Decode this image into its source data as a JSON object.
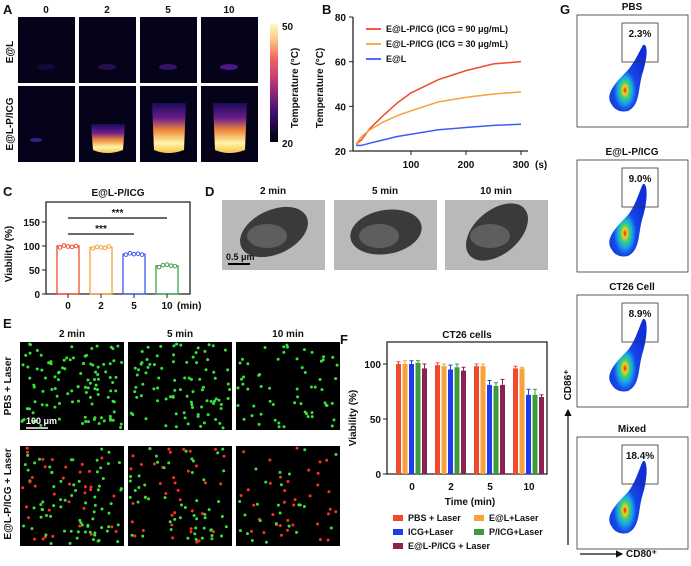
{
  "panels": {
    "A": {
      "label": "A",
      "columns": [
        "0",
        "2",
        "5",
        "10"
      ],
      "rows": [
        "E@L",
        "E@L-P/ICG"
      ],
      "colorbar": {
        "max": "50",
        "min": "20",
        "title": "Temperature (°C)"
      }
    },
    "D": {
      "label": "D",
      "columns": [
        "2 min",
        "5 min",
        "10 min"
      ],
      "scale_bar": "0.5 μm"
    },
    "E": {
      "label": "E",
      "columns": [
        "2 min",
        "5 min",
        "10 min"
      ],
      "rows": [
        "PBS + Laser",
        "E@L-P/ICG + Laser"
      ],
      "scale_bar": "100 μm"
    },
    "G": {
      "label": "G",
      "plots": [
        {
          "title": "PBS",
          "gate": "2.3%"
        },
        {
          "title": "E@L-P/ICG",
          "gate": "9.0%"
        },
        {
          "title": "CT26 Cell",
          "gate": "8.9%"
        },
        {
          "title": "Mixed",
          "gate": "18.4%"
        }
      ],
      "xlabel": "CD80⁺",
      "ylabel": "CD86⁺"
    }
  },
  "chart_data": [
    {
      "panel": "B",
      "label": "B",
      "type": "line",
      "xlabel": "(s)",
      "ylabel": "Temperature (°C)",
      "xlim": [
        0,
        300
      ],
      "ylim": [
        20,
        80
      ],
      "xticks": [
        "100",
        "200",
        "300"
      ],
      "yticks": [
        "20",
        "40",
        "60",
        "80"
      ],
      "legend": "top-left",
      "x": [
        0,
        10,
        25,
        50,
        75,
        100,
        150,
        200,
        250,
        300
      ],
      "series": [
        {
          "name": "E@L-P/ICG (ICG = 90 μg/mL)",
          "color": "#f04a2e",
          "values": [
            23,
            25,
            30,
            36,
            41.5,
            46,
            52,
            56,
            59,
            60
          ]
        },
        {
          "name": "E@L-P/ICG (ICG = 30 μg/mL)",
          "color": "#f9a13a",
          "values": [
            23,
            26.5,
            29.5,
            33,
            35.8,
            38,
            42,
            44,
            45.5,
            46.5
          ]
        },
        {
          "name": "E@L",
          "color": "#3a5cf5",
          "values": [
            22.5,
            22.5,
            23.5,
            25,
            26.5,
            27.5,
            29.5,
            30.5,
            31.5,
            32
          ]
        }
      ]
    },
    {
      "panel": "C",
      "label": "C",
      "type": "bar",
      "title": "E@L-P/ICG",
      "ylabel": "Viability (%)",
      "xlabel": "(min)",
      "ylim": [
        0,
        190
      ],
      "yticks": [
        "0",
        "50",
        "100",
        "150"
      ],
      "categories": [
        "0",
        "2",
        "5",
        "10"
      ],
      "colors": [
        "#f04a2e",
        "#f9a13a",
        "#3a5cf5",
        "#3fa34d"
      ],
      "values": [
        100,
        97,
        83,
        59
      ],
      "points": [
        [
          97,
          101,
          99,
          98,
          100
        ],
        [
          95,
          98,
          97,
          96,
          99
        ],
        [
          82,
          85,
          83,
          84,
          82
        ],
        [
          56,
          60,
          61,
          59,
          58
        ]
      ],
      "significance": [
        {
          "from": "0",
          "to": "10",
          "text": "***"
        },
        {
          "from": "0",
          "to": "5",
          "text": "***"
        }
      ]
    },
    {
      "panel": "F",
      "label": "F",
      "type": "bar",
      "title": "CT26 cells",
      "ylabel": "Viability (%)",
      "xlabel": "Time (min)",
      "ylim": [
        0,
        120
      ],
      "yticks": [
        "0",
        "50",
        "100"
      ],
      "categories": [
        "0",
        "2",
        "5",
        "10"
      ],
      "legend": "bottom",
      "series": [
        {
          "name": "PBS + Laser",
          "color": "#f04a2e",
          "values": [
            100,
            99,
            98,
            96
          ],
          "errors": [
            2,
            2,
            2,
            2
          ]
        },
        {
          "name": "E@L+Laser",
          "color": "#f9a13a",
          "values": [
            100,
            98,
            98,
            96
          ],
          "errors": [
            3,
            2,
            2,
            1
          ]
        },
        {
          "name": "ICG+Laser",
          "color": "#1f3cf2",
          "values": [
            100,
            95,
            81,
            72
          ],
          "errors": [
            3,
            4,
            4,
            5
          ]
        },
        {
          "name": "P/ICG+Laser",
          "color": "#3f9a3a",
          "values": [
            101,
            97,
            80,
            72
          ],
          "errors": [
            2,
            3,
            3,
            5
          ]
        },
        {
          "name": "E@L-P/ICG + Laser",
          "color": "#8b2252",
          "values": [
            96,
            94,
            81,
            70
          ],
          "errors": [
            4,
            3,
            5,
            2
          ]
        }
      ]
    }
  ]
}
